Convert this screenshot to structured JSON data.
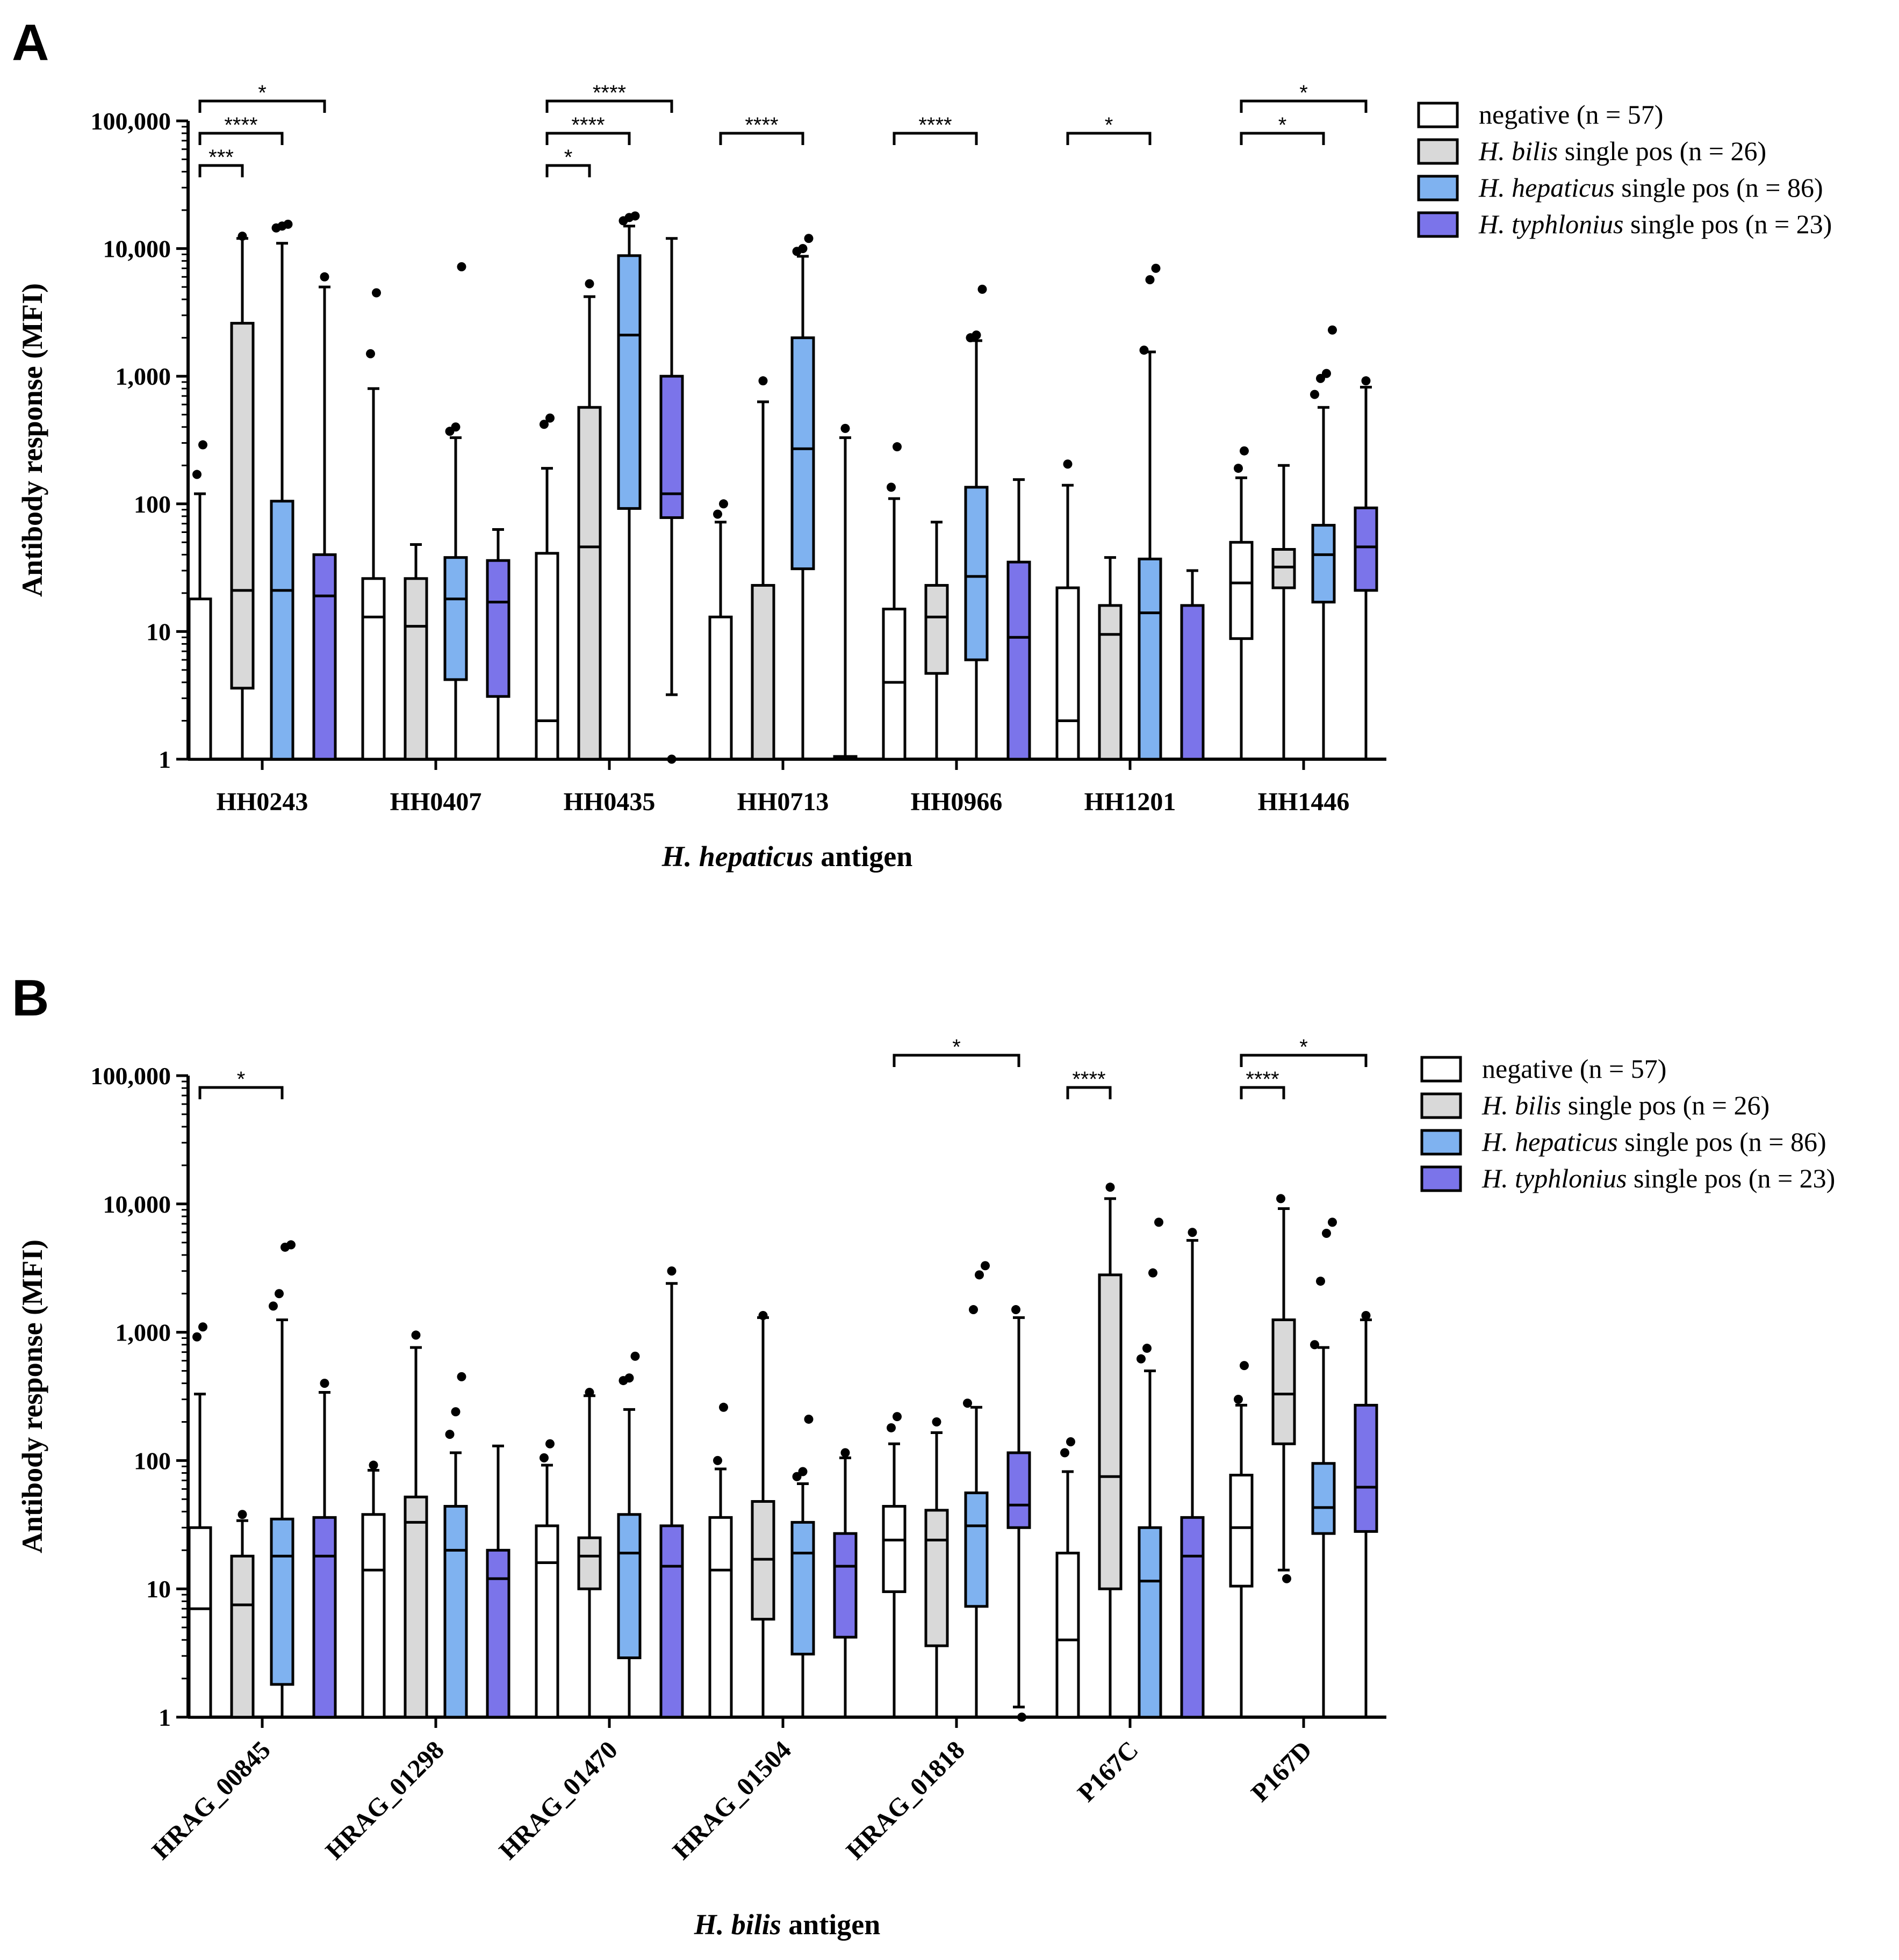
{
  "chart_data": [
    {
      "panel": "A",
      "type": "boxplot",
      "yscale": "log",
      "ylim": [
        1,
        100000
      ],
      "ylabel": "Antibody response (MFI)",
      "xlabel_italic": "H. hepaticus",
      "xlabel_rest": " antigen",
      "yticks": [
        1,
        10,
        100,
        1000,
        10000,
        100000
      ],
      "ytick_labels": [
        "1",
        "10",
        "100",
        "1,000",
        "10,000",
        "100,000"
      ],
      "categories": [
        "HH0243",
        "HH0407",
        "HH0435",
        "HH0713",
        "HH0966",
        "HH1201",
        "HH1446"
      ],
      "label_rotation": 0,
      "legend": [
        {
          "italic": "",
          "plain": "negative (n = 57)",
          "color": "#ffffff"
        },
        {
          "italic": "H. bilis",
          "plain": " single pos (n = 26)",
          "color": "#d9d9d9"
        },
        {
          "italic": "H. hepaticus",
          "plain": " single pos (n = 86)",
          "color": "#7fb2f0"
        },
        {
          "italic": "H. typhlonius",
          "plain": " single pos (n = 23)",
          "color": "#7b74ea"
        }
      ],
      "groups": [
        [
          {
            "series": "negative",
            "wlo": 1,
            "q1": 1,
            "med": 1,
            "q3": 18,
            "whi": 120,
            "out": [
              170,
              290
            ]
          },
          {
            "series": "H. bilis",
            "wlo": 1,
            "q1": 3.6,
            "med": 21,
            "q3": 2600,
            "whi": 12000,
            "out": [
              12500
            ]
          },
          {
            "series": "H. hepaticus",
            "wlo": 1,
            "q1": 1,
            "med": 21,
            "q3": 105,
            "whi": 11000,
            "out": [
              14500,
              15000,
              15500
            ]
          },
          {
            "series": "H. typhlonius",
            "wlo": 1,
            "q1": 1,
            "med": 19,
            "q3": 40,
            "whi": 5000,
            "out": [
              6000
            ]
          }
        ],
        [
          {
            "series": "negative",
            "wlo": 1,
            "q1": 1,
            "med": 13,
            "q3": 26,
            "whi": 800,
            "out": [
              1500,
              4500
            ]
          },
          {
            "series": "H. bilis",
            "wlo": 1,
            "q1": 1,
            "med": 11,
            "q3": 26,
            "whi": 48,
            "out": []
          },
          {
            "series": "H. hepaticus",
            "wlo": 1,
            "q1": 4.2,
            "med": 18,
            "q3": 38,
            "whi": 330,
            "out": [
              370,
              400,
              7200
            ]
          },
          {
            "series": "H. typhlonius",
            "wlo": 1,
            "q1": 3.1,
            "med": 17,
            "q3": 36,
            "whi": 63,
            "out": []
          }
        ],
        [
          {
            "series": "negative",
            "wlo": 1,
            "q1": 1,
            "med": 2,
            "q3": 41,
            "whi": 190,
            "out": [
              420,
              470
            ]
          },
          {
            "series": "H. bilis",
            "wlo": 1,
            "q1": 1,
            "med": 46,
            "q3": 570,
            "whi": 4200,
            "out": [
              5300
            ]
          },
          {
            "series": "H. hepaticus",
            "wlo": 1,
            "q1": 92,
            "med": 2100,
            "q3": 8800,
            "whi": 15000,
            "out": [
              16500,
              17500,
              18000
            ]
          },
          {
            "series": "H. typhlonius",
            "wlo": 3.2,
            "q1": 78,
            "med": 120,
            "q3": 1000,
            "whi": 12000,
            "out": [
              1
            ]
          }
        ],
        [
          {
            "series": "negative",
            "wlo": 1,
            "q1": 1,
            "med": 1,
            "q3": 13,
            "whi": 72,
            "out": [
              83,
              100
            ]
          },
          {
            "series": "H. bilis",
            "wlo": 1,
            "q1": 1,
            "med": 1,
            "q3": 23,
            "whi": 630,
            "out": [
              920
            ]
          },
          {
            "series": "H. hepaticus",
            "wlo": 1,
            "q1": 31,
            "med": 270,
            "q3": 2000,
            "whi": 8700,
            "out": [
              9500,
              10000,
              12000
            ]
          },
          {
            "series": "H. typhlonius",
            "wlo": 1,
            "q1": 1,
            "med": 1,
            "q3": 1.05,
            "whi": 330,
            "out": [
              390
            ]
          }
        ],
        [
          {
            "series": "negative",
            "wlo": 1,
            "q1": 1,
            "med": 4,
            "q3": 15,
            "whi": 110,
            "out": [
              135,
              280
            ]
          },
          {
            "series": "H. bilis",
            "wlo": 1,
            "q1": 4.7,
            "med": 13,
            "q3": 23,
            "whi": 72,
            "out": []
          },
          {
            "series": "H. hepaticus",
            "wlo": 1,
            "q1": 6,
            "med": 27,
            "q3": 135,
            "whi": 1900,
            "out": [
              2000,
              2100,
              4800
            ]
          },
          {
            "series": "H. typhlonius",
            "wlo": 1,
            "q1": 1,
            "med": 9,
            "q3": 35,
            "whi": 155,
            "out": []
          }
        ],
        [
          {
            "series": "negative",
            "wlo": 1,
            "q1": 1,
            "med": 2,
            "q3": 22,
            "whi": 140,
            "out": [
              205
            ]
          },
          {
            "series": "H. bilis",
            "wlo": 1,
            "q1": 1,
            "med": 9.5,
            "q3": 16,
            "whi": 38,
            "out": []
          },
          {
            "series": "H. hepaticus",
            "wlo": 1,
            "q1": 1,
            "med": 14,
            "q3": 37,
            "whi": 1550,
            "out": [
              1600,
              5700,
              7000
            ]
          },
          {
            "series": "H. typhlonius",
            "wlo": 1,
            "q1": 1,
            "med": 1,
            "q3": 16,
            "whi": 30,
            "out": []
          }
        ],
        [
          {
            "series": "negative",
            "wlo": 1,
            "q1": 8.8,
            "med": 24,
            "q3": 50,
            "whi": 160,
            "out": [
              190,
              260
            ]
          },
          {
            "series": "H. bilis",
            "wlo": 1,
            "q1": 22,
            "med": 32,
            "q3": 44,
            "whi": 200,
            "out": []
          },
          {
            "series": "H. hepaticus",
            "wlo": 1,
            "q1": 17,
            "med": 40,
            "q3": 68,
            "whi": 570,
            "out": [
              720,
              960,
              1050,
              2300
            ]
          },
          {
            "series": "H. typhlonius",
            "wlo": 1,
            "q1": 21,
            "med": 46,
            "q3": 93,
            "whi": 820,
            "out": [
              920
            ]
          }
        ]
      ],
      "significance": [
        {
          "group": 0,
          "from": 0,
          "to": 3,
          "label": "*",
          "level": 0
        },
        {
          "group": 0,
          "from": 0,
          "to": 2,
          "label": "****",
          "level": 1
        },
        {
          "group": 0,
          "from": 0,
          "to": 1,
          "label": "***",
          "level": 2
        },
        {
          "group": 2,
          "from": 0,
          "to": 3,
          "label": "****",
          "level": 0
        },
        {
          "group": 2,
          "from": 0,
          "to": 2,
          "label": "****",
          "level": 1
        },
        {
          "group": 2,
          "from": 0,
          "to": 1,
          "label": "*",
          "level": 2
        },
        {
          "group": 3,
          "from": 0,
          "to": 2,
          "label": "****",
          "level": 1
        },
        {
          "group": 4,
          "from": 0,
          "to": 2,
          "label": "****",
          "level": 1
        },
        {
          "group": 5,
          "from": 0,
          "to": 2,
          "label": "*",
          "level": 1
        },
        {
          "group": 6,
          "from": 0,
          "to": 3,
          "label": "*",
          "level": 0
        },
        {
          "group": 6,
          "from": 0,
          "to": 2,
          "label": "*",
          "level": 1
        }
      ]
    },
    {
      "panel": "B",
      "type": "boxplot",
      "yscale": "log",
      "ylim": [
        1,
        100000
      ],
      "ylabel": "Antibody response (MFI)",
      "xlabel_italic": "H. bilis",
      "xlabel_rest": " antigen",
      "yticks": [
        1,
        10,
        100,
        1000,
        10000,
        100000
      ],
      "ytick_labels": [
        "1",
        "10",
        "100",
        "1,000",
        "10,000",
        "100,000"
      ],
      "categories": [
        "HRAG_00845",
        "HRAG_01298",
        "HRAG_01470",
        "HRAG_01504",
        "HRAG_01818",
        "P167C",
        "P167D"
      ],
      "label_rotation": -45,
      "legend": [
        {
          "italic": "",
          "plain": "negative (n = 57)",
          "color": "#ffffff"
        },
        {
          "italic": "H. bilis",
          "plain": " single pos (n = 26)",
          "color": "#d9d9d9"
        },
        {
          "italic": "H. hepaticus",
          "plain": " single pos (n = 86)",
          "color": "#7fb2f0"
        },
        {
          "italic": "H. typhlonius",
          "plain": " single pos (n = 23)",
          "color": "#7b74ea"
        }
      ],
      "groups": [
        [
          {
            "series": "negative",
            "wlo": 1,
            "q1": 1,
            "med": 7,
            "q3": 30,
            "whi": 330,
            "out": [
              920,
              1100
            ]
          },
          {
            "series": "H. bilis",
            "wlo": 1,
            "q1": 1,
            "med": 7.5,
            "q3": 18,
            "whi": 34,
            "out": [
              38
            ]
          },
          {
            "series": "H. hepaticus",
            "wlo": 1,
            "q1": 1.8,
            "med": 18,
            "q3": 35,
            "whi": 1250,
            "out": [
              1600,
              2000,
              4600,
              4800
            ]
          },
          {
            "series": "H. typhlonius",
            "wlo": 1,
            "q1": 1,
            "med": 18,
            "q3": 36,
            "whi": 340,
            "out": [
              400
            ]
          }
        ],
        [
          {
            "series": "negative",
            "wlo": 1,
            "q1": 1,
            "med": 14,
            "q3": 38,
            "whi": 84,
            "out": [
              92
            ]
          },
          {
            "series": "H. bilis",
            "wlo": 1,
            "q1": 1,
            "med": 33,
            "q3": 52,
            "whi": 760,
            "out": [
              950
            ]
          },
          {
            "series": "H. hepaticus",
            "wlo": 1,
            "q1": 1,
            "med": 20,
            "q3": 44,
            "whi": 115,
            "out": [
              160,
              240,
              450
            ]
          },
          {
            "series": "H. typhlonius",
            "wlo": 1,
            "q1": 1,
            "med": 12,
            "q3": 20,
            "whi": 130,
            "out": []
          }
        ],
        [
          {
            "series": "negative",
            "wlo": 1,
            "q1": 1,
            "med": 16,
            "q3": 31,
            "whi": 92,
            "out": [
              105,
              135
            ]
          },
          {
            "series": "H. bilis",
            "wlo": 1,
            "q1": 10,
            "med": 18,
            "q3": 25,
            "whi": 320,
            "out": [
              340
            ]
          },
          {
            "series": "H. hepaticus",
            "wlo": 1,
            "q1": 2.9,
            "med": 19,
            "q3": 38,
            "whi": 250,
            "out": [
              420,
              440,
              650
            ]
          },
          {
            "series": "H. typhlonius",
            "wlo": 1,
            "q1": 1,
            "med": 15,
            "q3": 31,
            "whi": 2400,
            "out": [
              3000
            ]
          }
        ],
        [
          {
            "series": "negative",
            "wlo": 1,
            "q1": 1,
            "med": 14,
            "q3": 36,
            "whi": 86,
            "out": [
              100,
              260
            ]
          },
          {
            "series": "H. bilis",
            "wlo": 1,
            "q1": 5.8,
            "med": 17,
            "q3": 48,
            "whi": 1300,
            "out": [
              1350
            ]
          },
          {
            "series": "H. hepaticus",
            "wlo": 1,
            "q1": 3.1,
            "med": 19,
            "q3": 33,
            "whi": 66,
            "out": [
              75,
              82,
              210
            ]
          },
          {
            "series": "H. typhlonius",
            "wlo": 1,
            "q1": 4.2,
            "med": 15,
            "q3": 27,
            "whi": 105,
            "out": [
              115
            ]
          }
        ],
        [
          {
            "series": "negative",
            "wlo": 1,
            "q1": 9.5,
            "med": 24,
            "q3": 44,
            "whi": 135,
            "out": [
              180,
              220
            ]
          },
          {
            "series": "H. bilis",
            "wlo": 1,
            "q1": 3.6,
            "med": 24,
            "q3": 41,
            "whi": 165,
            "out": [
              200
            ]
          },
          {
            "series": "H. hepaticus",
            "wlo": 1,
            "q1": 7.3,
            "med": 31,
            "q3": 56,
            "whi": 260,
            "out": [
              280,
              1500,
              2800,
              3300
            ]
          },
          {
            "series": "H. typhlonius",
            "wlo": 1.2,
            "q1": 30,
            "med": 45,
            "q3": 115,
            "whi": 1300,
            "out": [
              1500,
              1
            ]
          }
        ],
        [
          {
            "series": "negative",
            "wlo": 1,
            "q1": 1,
            "med": 4,
            "q3": 19,
            "whi": 82,
            "out": [
              115,
              140
            ]
          },
          {
            "series": "H. bilis",
            "wlo": 1,
            "q1": 10,
            "med": 75,
            "q3": 2800,
            "whi": 11000,
            "out": [
              13500
            ]
          },
          {
            "series": "H. hepaticus",
            "wlo": 1,
            "q1": 1,
            "med": 11.5,
            "q3": 30,
            "whi": 500,
            "out": [
              620,
              750,
              2900,
              7200
            ]
          },
          {
            "series": "H. typhlonius",
            "wlo": 1,
            "q1": 1,
            "med": 18,
            "q3": 36,
            "whi": 5200,
            "out": [
              6000
            ]
          }
        ],
        [
          {
            "series": "negative",
            "wlo": 1,
            "q1": 10.5,
            "med": 30,
            "q3": 77,
            "whi": 270,
            "out": [
              300,
              550
            ]
          },
          {
            "series": "H. bilis",
            "wlo": 14,
            "q1": 135,
            "med": 330,
            "q3": 1250,
            "whi": 9200,
            "out": [
              11000,
              12
            ]
          },
          {
            "series": "H. hepaticus",
            "wlo": 1,
            "q1": 27,
            "med": 43,
            "q3": 95,
            "whi": 760,
            "out": [
              800,
              2500,
              5900,
              7200
            ]
          },
          {
            "series": "H. typhlonius",
            "wlo": 1,
            "q1": 28,
            "med": 62,
            "q3": 270,
            "whi": 1250,
            "out": [
              1350
            ]
          }
        ]
      ],
      "significance": [
        {
          "group": 0,
          "from": 0,
          "to": 2,
          "label": "*",
          "level": 1
        },
        {
          "group": 4,
          "from": 0,
          "to": 3,
          "label": "*",
          "level": 0
        },
        {
          "group": 5,
          "from": 0,
          "to": 1,
          "label": "****",
          "level": 1
        },
        {
          "group": 6,
          "from": 0,
          "to": 3,
          "label": "*",
          "level": 0
        },
        {
          "group": 6,
          "from": 0,
          "to": 1,
          "label": "****",
          "level": 1
        }
      ]
    }
  ]
}
